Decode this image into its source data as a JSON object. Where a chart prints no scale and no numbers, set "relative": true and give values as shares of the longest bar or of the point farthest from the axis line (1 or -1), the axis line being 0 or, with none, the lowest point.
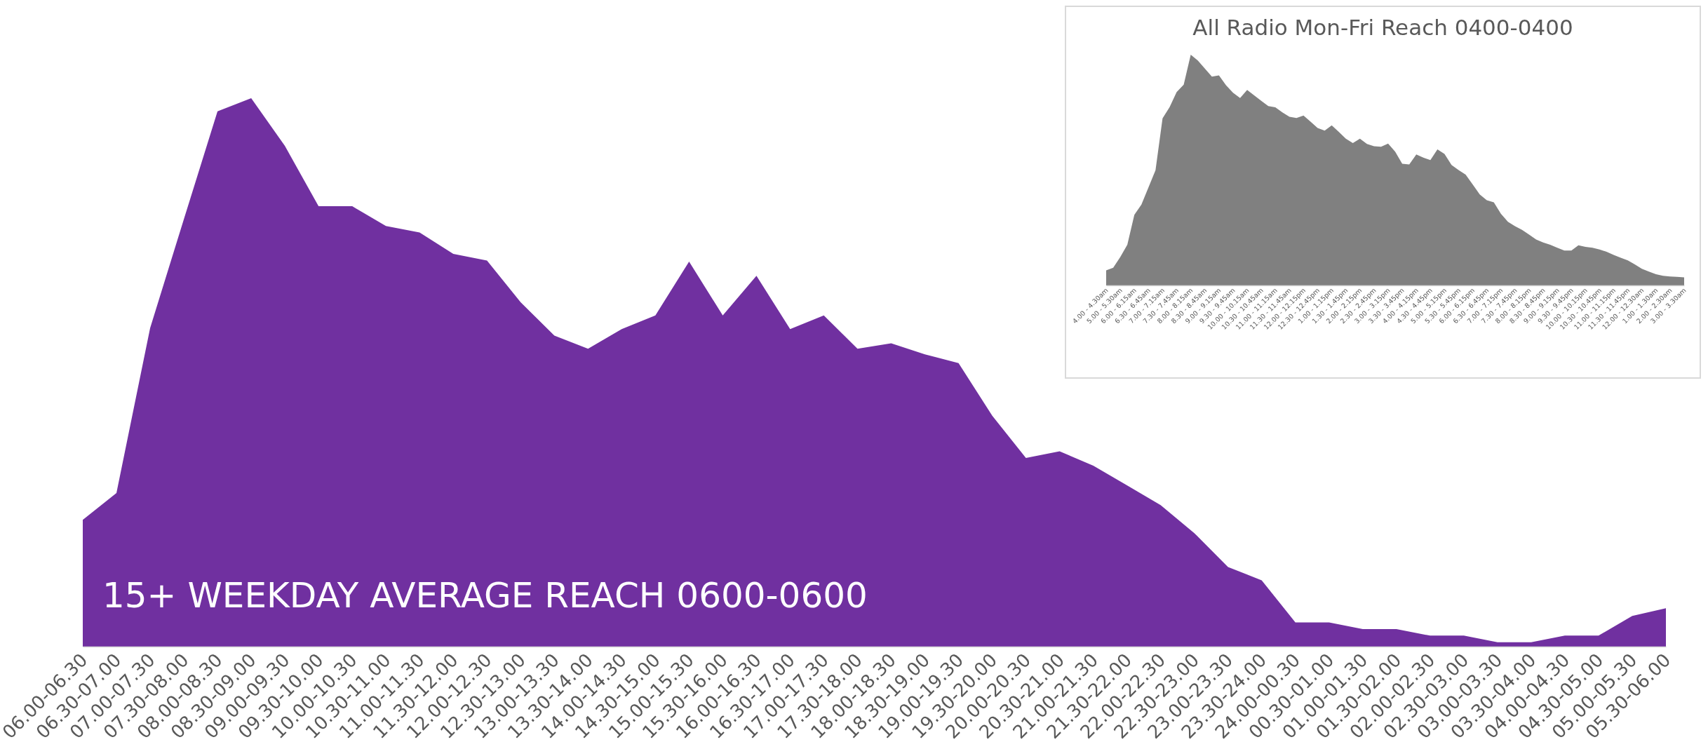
{
  "chart_data": [
    {
      "type": "area",
      "relative": true,
      "title": "15+ WEEKDAY AVERAGE REACH 0600-0600",
      "color": "#7030a0",
      "categories": [
        "06.00-06.30",
        "06.30-07.00",
        "07.00-07.30",
        "07.30-08.00",
        "08.00-08.30",
        "08.30-09.00",
        "09.00-09.30",
        "09.30-10.00",
        "10.00-10.30",
        "10.30-11.00",
        "11.00-11.30",
        "11.30-12.00",
        "12.00-12.30",
        "12.30-13.00",
        "13.00-13.30",
        "13.30-14.00",
        "14.00-14.30",
        "14.30-15.00",
        "15.00-15.30",
        "15.30-16.00",
        "16.00-16.30",
        "16.30-17.00",
        "17.00-17.30",
        "17.30-18.00",
        "18.00-18.30",
        "18.30-19.00",
        "19.00-19.30",
        "19.30-20.00",
        "20.00-20.30",
        "20.30-21.00",
        "21.00-21.30",
        "21.30-22.00",
        "22.00-22.30",
        "22.30-23.00",
        "23.00-23.30",
        "23.30-24.00",
        "24.00-00.30",
        "00.30-01.00",
        "01.00-01.30",
        "01.30-02.00",
        "02.00-02.30",
        "02.30-03.00",
        "03.00-03.30",
        "03.30-04.00",
        "04.00-04.30",
        "04.30-05.00",
        "05.00-05.30",
        "05.30-06.00"
      ],
      "values": [
        0.231,
        0.28,
        0.581,
        0.779,
        0.976,
        1.0,
        0.913,
        0.803,
        0.803,
        0.767,
        0.755,
        0.716,
        0.704,
        0.628,
        0.567,
        0.543,
        0.579,
        0.604,
        0.702,
        0.604,
        0.676,
        0.579,
        0.604,
        0.543,
        0.553,
        0.533,
        0.517,
        0.421,
        0.344,
        0.356,
        0.33,
        0.294,
        0.258,
        0.207,
        0.145,
        0.121,
        0.044,
        0.044,
        0.032,
        0.032,
        0.02,
        0.02,
        0.008,
        0.008,
        0.02,
        0.02,
        0.056,
        0.07
      ]
    },
    {
      "type": "area",
      "relative": true,
      "title": "All Radio Mon-Fri Reach 0400-0400",
      "color": "#808080",
      "categories": [
        "4.00 - 4.30am",
        null,
        "5.00 - 5.30am",
        null,
        "6.00 - 6.15am",
        null,
        "6.30 - 6.45am",
        null,
        "7.00 - 7.15am",
        null,
        "7.30 - 7.45am",
        null,
        "8.00 - 8.15am",
        null,
        "8.30 - 8.45am",
        null,
        "9.00 - 9.15am",
        null,
        "9.30 - 9.45am",
        null,
        "10.00 - 10.15am",
        null,
        "10.30 - 10.45am",
        null,
        "11.00 - 11.15am",
        null,
        "11.30 - 11.45am",
        null,
        "12.00 - 12.15pm",
        null,
        "12.30 - 12.45pm",
        null,
        "1.00 - 1.15pm",
        null,
        "1.30 - 1.45pm",
        null,
        "2.00 - 2.15pm",
        null,
        "2.30 - 2.45pm",
        null,
        "3.00 - 3.15pm",
        null,
        "3.30 - 3.45pm",
        null,
        "4.00 - 4.15pm",
        null,
        "4.30 - 4.45pm",
        null,
        "5.00 - 5.15pm",
        null,
        "5.30 - 5.45pm",
        null,
        "6.00 - 6.15pm",
        null,
        "6.30 - 6.45pm",
        null,
        "7.00 - 7.15pm",
        null,
        "7.30 - 7.45pm",
        null,
        "8.00 - 8.15pm",
        null,
        "8.30 - 8.45pm",
        null,
        "9.00 - 9.15pm",
        null,
        "9.30 - 9.45pm",
        null,
        "10.00 - 10.15pm",
        null,
        "10.30 - 10.45pm",
        null,
        "11.00 - 11.15pm",
        null,
        "11.30 - 11.45pm",
        null,
        "12.00 - 12.30am",
        null,
        "1.00 - 1.30am",
        null,
        "2.00 - 2.30am",
        null,
        "3.00 - 3.30am"
      ],
      "values": [
        0.065,
        0.077,
        0.123,
        0.176,
        0.306,
        0.35,
        0.425,
        0.499,
        0.724,
        0.773,
        0.838,
        0.87,
        1.0,
        0.975,
        0.94,
        0.905,
        0.91,
        0.868,
        0.835,
        0.812,
        0.847,
        0.824,
        0.8,
        0.777,
        0.772,
        0.75,
        0.731,
        0.726,
        0.736,
        0.71,
        0.682,
        0.671,
        0.694,
        0.666,
        0.636,
        0.617,
        0.636,
        0.613,
        0.603,
        0.601,
        0.615,
        0.58,
        0.527,
        0.524,
        0.568,
        0.554,
        0.543,
        0.59,
        0.57,
        0.522,
        0.5,
        0.48,
        0.438,
        0.394,
        0.369,
        0.36,
        0.311,
        0.276,
        0.257,
        0.241,
        0.22,
        0.199,
        0.186,
        0.176,
        0.163,
        0.151,
        0.151,
        0.174,
        0.167,
        0.163,
        0.156,
        0.146,
        0.132,
        0.12,
        0.109,
        0.091,
        0.072,
        0.06,
        0.049,
        0.042,
        0.039,
        0.037,
        0.035
      ]
    }
  ]
}
